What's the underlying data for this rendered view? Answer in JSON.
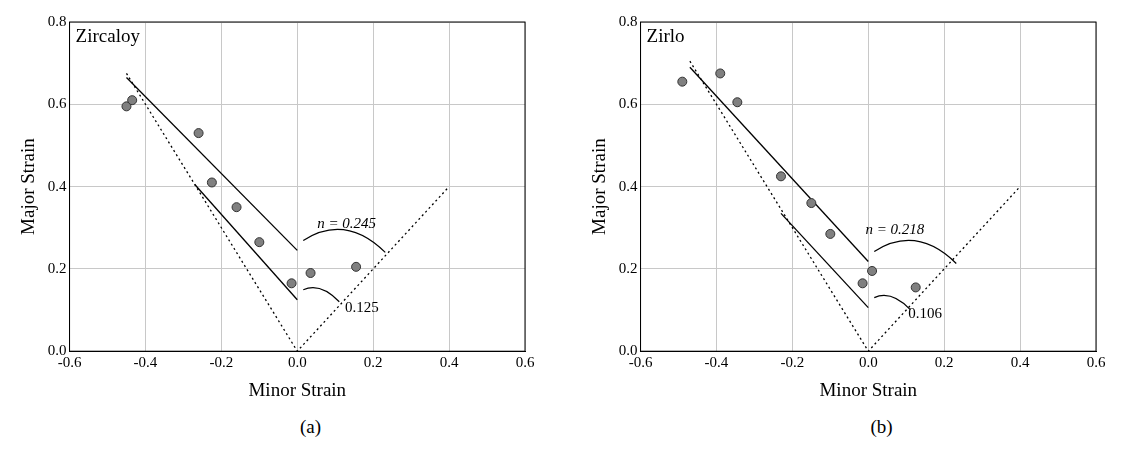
{
  "chart_data": [
    {
      "type": "scatter",
      "title": "Zircaloy",
      "subtitle": "(a)",
      "x_label": "Minor Strain",
      "y_label": "Major Strain",
      "xlim": [
        -0.6,
        0.6
      ],
      "xticks": [
        -0.6,
        -0.4,
        -0.2,
        {
          "value": 0,
          "label": "0.0"
        },
        0.2,
        0.4,
        0.6
      ],
      "ylim": [
        0,
        0.8
      ],
      "yticks": [
        {
          "value": 0,
          "label": "0.0"
        },
        0.2,
        0.4,
        0.6,
        0.8
      ],
      "grid": true,
      "series": [
        {
          "type": "scatter",
          "marker": "circle",
          "color": "#808080",
          "x": [
            -0.45,
            -0.435,
            -0.26,
            -0.225,
            -0.16,
            -0.1,
            -0.015,
            0.035,
            0.155
          ],
          "values": [
            0.595,
            0.61,
            0.53,
            0.41,
            0.35,
            0.265,
            0.165,
            0.19,
            0.205
          ]
        },
        {
          "type": "line",
          "line_style": "solid",
          "color": "#000000",
          "x": [
            -0.45,
            0
          ],
          "values": [
            0.665,
            0.245
          ]
        },
        {
          "type": "line",
          "line_style": "solid",
          "color": "#000000",
          "x": [
            -0.27,
            0
          ],
          "values": [
            0.405,
            0.125
          ]
        },
        {
          "type": "line",
          "line_style": "dotted",
          "color": "#000000",
          "x": [
            -0.45,
            0,
            0.4
          ],
          "values": [
            0.675,
            0,
            0.4
          ]
        }
      ],
      "annotations": [
        {
          "text": "n = 0.245",
          "x": 0.13,
          "y": 0.31
        },
        {
          "text": "0.125",
          "x": 0.17,
          "y": 0.105
        }
      ]
    },
    {
      "type": "scatter",
      "title": "Zirlo",
      "subtitle": "(b)",
      "x_label": "Minor Strain",
      "y_label": "Major Strain",
      "xlim": [
        -0.6,
        0.6
      ],
      "xticks": [
        -0.6,
        -0.4,
        -0.2,
        {
          "value": 0,
          "label": "0.0"
        },
        0.2,
        0.4,
        0.6
      ],
      "ylim": [
        0,
        0.8
      ],
      "yticks": [
        {
          "value": 0,
          "label": "0.0"
        },
        0.2,
        0.4,
        0.6,
        0.8
      ],
      "grid": true,
      "series": [
        {
          "type": "scatter",
          "marker": "circle",
          "color": "#808080",
          "x": [
            -0.49,
            -0.39,
            -0.345,
            -0.23,
            -0.15,
            -0.1,
            -0.015,
            0.01,
            0.125
          ],
          "values": [
            0.655,
            0.675,
            0.605,
            0.425,
            0.36,
            0.285,
            0.165,
            0.195,
            0.155
          ]
        },
        {
          "type": "line",
          "line_style": "solid",
          "color": "#000000",
          "x": [
            -0.47,
            0
          ],
          "values": [
            0.69,
            0.218
          ]
        },
        {
          "type": "line",
          "line_style": "solid",
          "color": "#000000",
          "x": [
            -0.23,
            0
          ],
          "values": [
            0.335,
            0.106
          ]
        },
        {
          "type": "line",
          "line_style": "dotted",
          "color": "#000000",
          "x": [
            -0.47,
            0,
            0.4
          ],
          "values": [
            0.705,
            0,
            0.4
          ]
        }
      ],
      "annotations": [
        {
          "text": "n = 0.218",
          "x": 0.07,
          "y": 0.295
        },
        {
          "text": "0.106",
          "x": 0.15,
          "y": 0.09
        }
      ]
    }
  ]
}
